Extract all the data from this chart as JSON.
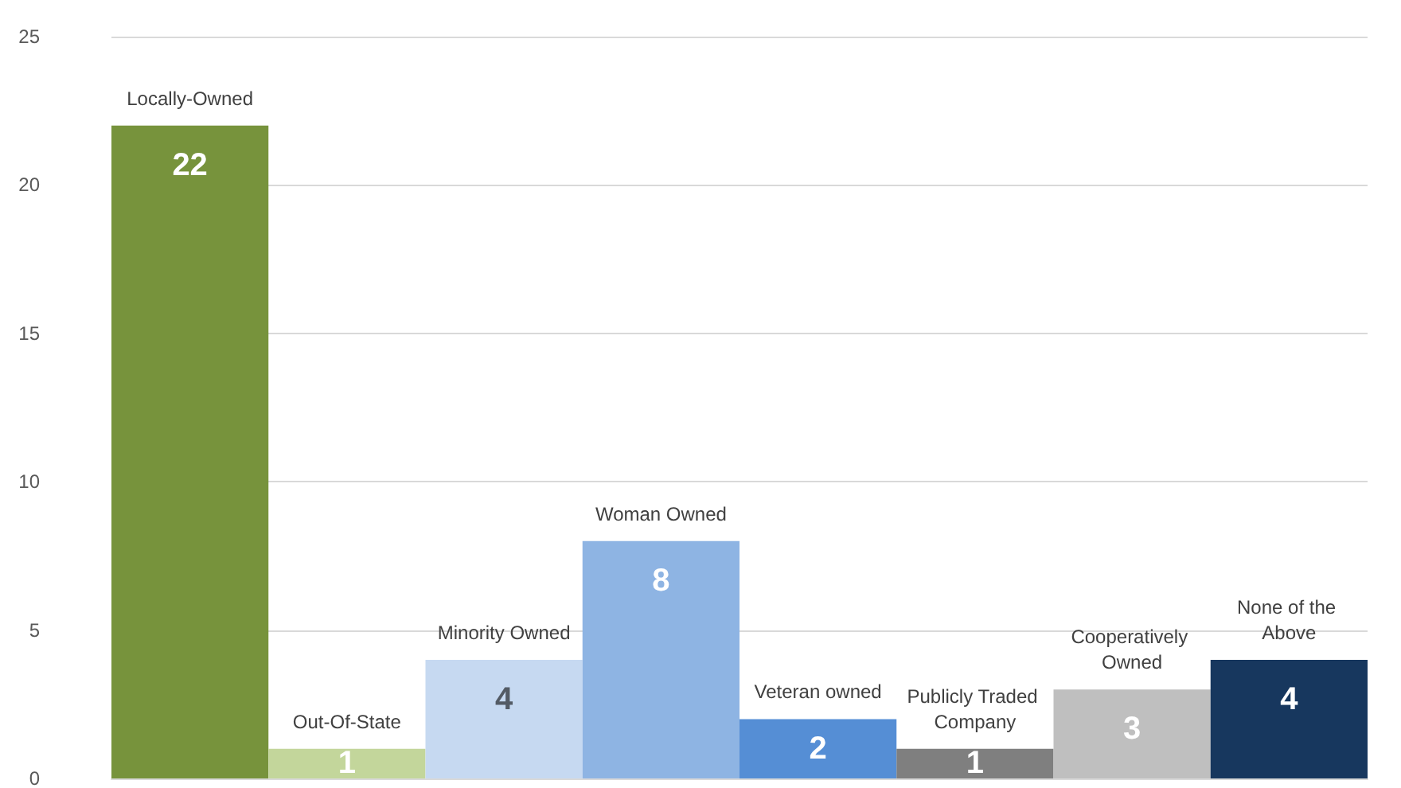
{
  "chart_data": {
    "type": "bar",
    "categories": [
      "Locally-Owned",
      "Out-Of-State",
      "Minority Owned",
      "Woman Owned",
      "Veteran owned",
      "Publicly Traded Company",
      "Cooperatively Owned",
      "None of the Above"
    ],
    "values": [
      22,
      1,
      4,
      8,
      2,
      1,
      3,
      4
    ],
    "colors": [
      "#77933c",
      "#c3d69b",
      "#c6d9f1",
      "#8eb4e3",
      "#558ed5",
      "#7f7f7f",
      "#bfbfbf",
      "#17375e"
    ],
    "ylim": [
      0,
      25
    ],
    "yticks": [
      0,
      5,
      10,
      15,
      20,
      25
    ],
    "grid": "y",
    "data_labels": true,
    "tick_labels": "y"
  }
}
